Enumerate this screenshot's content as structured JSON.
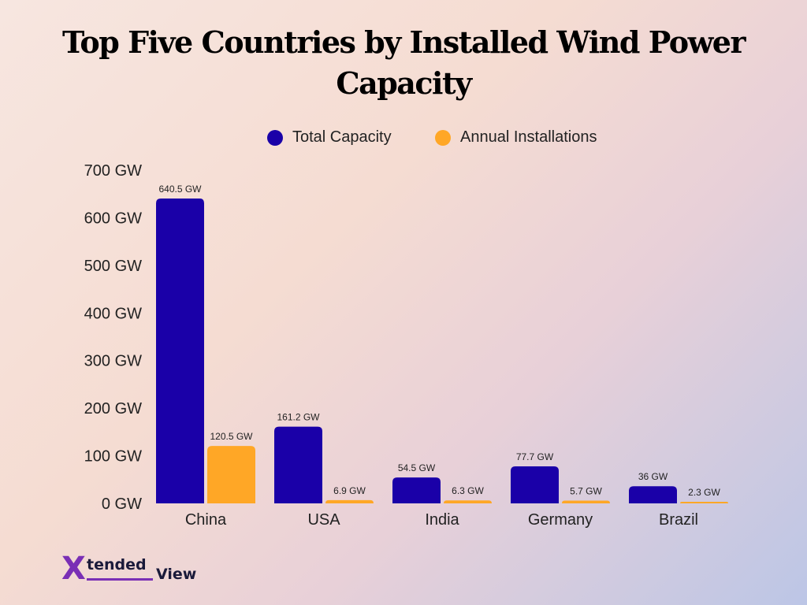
{
  "title_line1": "Top Five Countries by Installed Wind Power",
  "title_line2": "Capacity",
  "logo": {
    "x": "X",
    "tended": "tended",
    "view": "View"
  },
  "colors": {
    "total": "#1a00a8",
    "annual": "#ffa726"
  },
  "chart_data": {
    "type": "bar",
    "categories": [
      "China",
      "USA",
      "India",
      "Germany",
      "Brazil"
    ],
    "series": [
      {
        "name": "Total Capacity",
        "values": [
          640.5,
          161.2,
          54.5,
          77.7,
          36
        ],
        "labels": [
          "640.5 GW",
          "161.2 GW",
          "54.5 GW",
          "77.7 GW",
          "36 GW"
        ]
      },
      {
        "name": "Annual Installations",
        "values": [
          120.5,
          6.9,
          6.3,
          5.7,
          2.3
        ],
        "labels": [
          "120.5 GW",
          "6.9 GW",
          "6.3 GW",
          "5.7 GW",
          "2.3 GW"
        ]
      }
    ],
    "yticks": [
      "0 GW",
      "100 GW",
      "200 GW",
      "300 GW",
      "400 GW",
      "500 GW",
      "600 GW",
      "700 GW"
    ],
    "ylim": [
      0,
      700
    ],
    "legend": "top-center",
    "grid": false
  }
}
